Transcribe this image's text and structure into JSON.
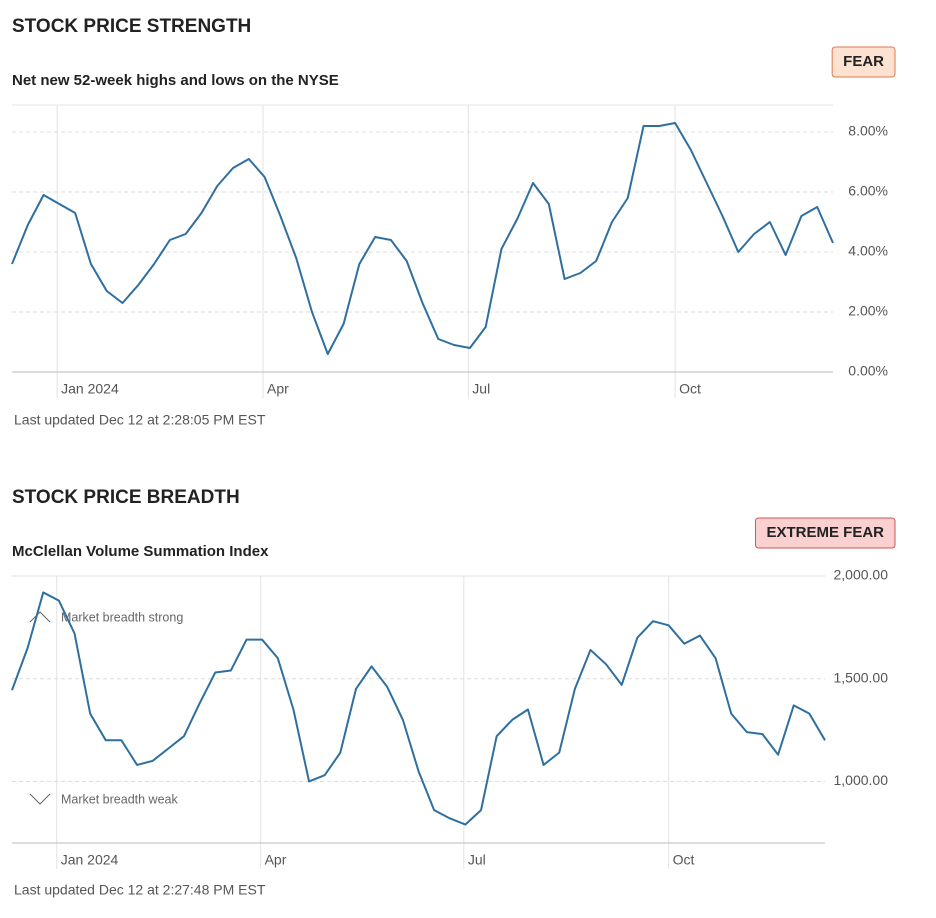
{
  "chart_data": [
    {
      "type": "line",
      "title": "STOCK PRICE STRENGTH",
      "subtitle": "Net new 52-week highs and lows on the NYSE",
      "badge": "FEAR",
      "badge_color": "#fde2d2",
      "badge_border": "#e07a4b",
      "footnote": "Last updated Dec 12 at 2:28:05 PM EST",
      "color": "#2f6f9f",
      "values": [
        3.6,
        4.9,
        5.9,
        5.6,
        5.3,
        3.6,
        2.7,
        2.3,
        2.9,
        3.6,
        4.4,
        4.6,
        5.3,
        6.2,
        6.8,
        7.1,
        6.5,
        5.2,
        3.8,
        2.0,
        0.6,
        1.6,
        3.6,
        4.5,
        4.4,
        3.7,
        2.3,
        1.1,
        0.9,
        0.8,
        1.5,
        4.1,
        5.1,
        6.3,
        5.6,
        3.1,
        3.3,
        3.7,
        5.0,
        5.8,
        8.2,
        8.2,
        8.3,
        7.4,
        6.3,
        5.2,
        4.0,
        4.6,
        5.0,
        3.9,
        5.2,
        5.5,
        4.3
      ],
      "xlim": [
        0,
        52
      ],
      "xticks": [
        {
          "value": 2.86,
          "label": "Jan 2024"
        },
        {
          "value": 15.9,
          "label": "Apr"
        },
        {
          "value": 28.9,
          "label": "Jul"
        },
        {
          "value": 42,
          "label": "Oct"
        }
      ],
      "ylim": [
        0,
        8.9
      ],
      "yticks": [
        {
          "value": 0,
          "label": "0.00%"
        },
        {
          "value": 2,
          "label": "2.00%"
        },
        {
          "value": 4,
          "label": "4.00%"
        },
        {
          "value": 6,
          "label": "6.00%"
        },
        {
          "value": 8,
          "label": "8.00%"
        }
      ],
      "grid": true
    },
    {
      "type": "line",
      "title": "STOCK PRICE BREADTH",
      "subtitle": "McClellan Volume Summation Index",
      "badge": "EXTREME FEAR",
      "badge_color": "#fbd0d0",
      "badge_border": "#d35555",
      "footnote": "Last updated Dec 12 at 2:27:48 PM EST",
      "annotations": [
        "Market breadth strong",
        "Market breadth weak"
      ],
      "color": "#2f6f9f",
      "values": [
        1444,
        1650,
        1920,
        1880,
        1720,
        1330,
        1200,
        1200,
        1080,
        1100,
        1160,
        1220,
        1380,
        1530,
        1540,
        1690,
        1690,
        1600,
        1350,
        1000,
        1030,
        1140,
        1450,
        1560,
        1460,
        1300,
        1050,
        860,
        820,
        790,
        860,
        1220,
        1300,
        1350,
        1080,
        1140,
        1450,
        1640,
        1570,
        1470,
        1700,
        1780,
        1760,
        1670,
        1710,
        1600,
        1330,
        1240,
        1230,
        1130,
        1370,
        1330,
        1200
      ],
      "xlim": [
        0,
        52
      ],
      "xticks": [
        {
          "value": 2.86,
          "label": "Jan 2024"
        },
        {
          "value": 15.9,
          "label": "Apr"
        },
        {
          "value": 28.9,
          "label": "Jul"
        },
        {
          "value": 42,
          "label": "Oct"
        }
      ],
      "ylim": [
        700,
        2000
      ],
      "yticks": [
        {
          "value": 1000,
          "label": "1,000.00"
        },
        {
          "value": 1500,
          "label": "1,500.00"
        },
        {
          "value": 2000,
          "label": "2,000.00"
        }
      ],
      "grid": true
    }
  ]
}
